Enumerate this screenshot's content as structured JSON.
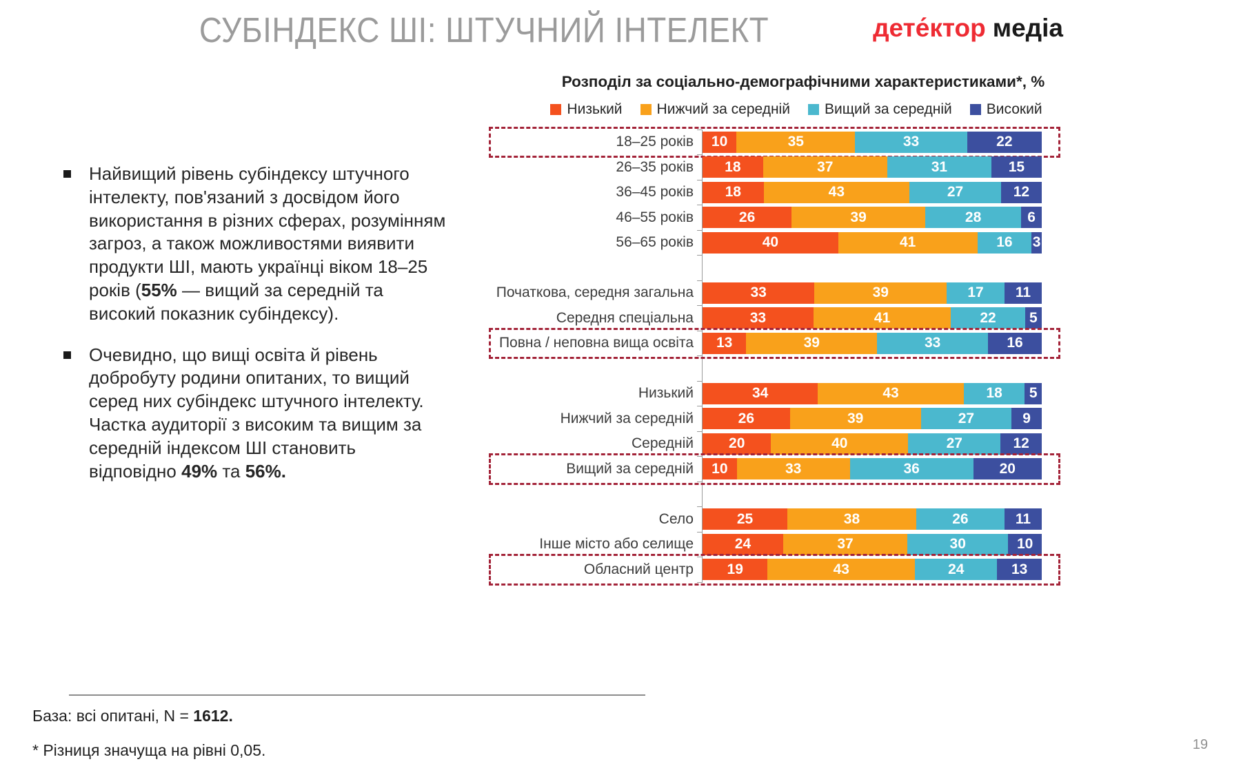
{
  "title": "СУБІНДЕКС ШІ: ШТУЧНИЙ ІНТЕЛЕКТ",
  "logo": {
    "brand_red": "дете́ктор",
    "brand_black": "медіа",
    "red_color": "#EE2B33"
  },
  "bullets": [
    {
      "segments": [
        {
          "t": "Найвищий рівень субіндексу штучного інтелекту, пов'язаний з досвідом його використання в різних сферах, розумінням загроз, а також можливостями виявити продукти ШІ, мають українці віком 18–25 років (",
          "b": false
        },
        {
          "t": "55%",
          "b": true
        },
        {
          "t": " — вищий за середній та високий показник субіндексу).",
          "b": false
        }
      ]
    },
    {
      "segments": [
        {
          "t": "Очевидно, що вищі освіта й рівень добробуту родини опитаних, то вищий серед них субіндекс штучного інтелекту. Частка аудиторії з високим та вищим за середній індексом ШІ становить відповідно ",
          "b": false
        },
        {
          "t": "49%",
          "b": true
        },
        {
          "t": " та ",
          "b": false
        },
        {
          "t": "56%.",
          "b": true
        }
      ]
    }
  ],
  "chart_data": {
    "type": "bar",
    "stacked": true,
    "orientation": "horizontal",
    "title": "Розподіл за соціально-демографічними характеристиками*, %",
    "value_unit": "%",
    "xlim": [
      0,
      100
    ],
    "legend_position": "top",
    "series_names": [
      "Низький",
      "Нижчий за середній",
      "Вищий за середній",
      "Високий"
    ],
    "series_colors": [
      "#F4511E",
      "#F9A11B",
      "#4BB8CE",
      "#3C4F9F"
    ],
    "highlight_box_color": "#A32338",
    "groups": [
      {
        "rows": [
          {
            "label": "18–25 років",
            "values": [
              10,
              35,
              33,
              22
            ],
            "highlighted": true
          },
          {
            "label": "26–35 років",
            "values": [
              18,
              37,
              31,
              15
            ],
            "highlighted": false
          },
          {
            "label": "36–45 років",
            "values": [
              18,
              43,
              27,
              12
            ],
            "highlighted": false
          },
          {
            "label": "46–55 років",
            "values": [
              26,
              39,
              28,
              6
            ],
            "highlighted": false
          },
          {
            "label": "56–65 років",
            "values": [
              40,
              41,
              16,
              3
            ],
            "highlighted": false
          }
        ]
      },
      {
        "rows": [
          {
            "label": "Початкова, середня загальна",
            "values": [
              33,
              39,
              17,
              11
            ],
            "highlighted": false
          },
          {
            "label": "Середня спеціальна",
            "values": [
              33,
              41,
              22,
              5
            ],
            "highlighted": false
          },
          {
            "label": "Повна / неповна вища освіта",
            "values": [
              13,
              39,
              33,
              16
            ],
            "highlighted": true
          }
        ]
      },
      {
        "rows": [
          {
            "label": "Низький",
            "values": [
              34,
              43,
              18,
              5
            ],
            "highlighted": false
          },
          {
            "label": "Нижчий за середній",
            "values": [
              26,
              39,
              27,
              9
            ],
            "highlighted": false
          },
          {
            "label": "Середній",
            "values": [
              20,
              40,
              27,
              12
            ],
            "highlighted": false
          },
          {
            "label": "Вищий за середній",
            "values": [
              10,
              33,
              36,
              20
            ],
            "highlighted": true
          }
        ]
      },
      {
        "rows": [
          {
            "label": "Село",
            "values": [
              25,
              38,
              26,
              11
            ],
            "highlighted": false
          },
          {
            "label": "Інше місто або селище",
            "values": [
              24,
              37,
              30,
              10
            ],
            "highlighted": false
          },
          {
            "label": "Обласний центр",
            "values": [
              19,
              43,
              24,
              13
            ],
            "highlighted": true
          }
        ]
      }
    ]
  },
  "footer": {
    "base_segments": [
      {
        "t": "База: всі опитані, N = ",
        "b": false
      },
      {
        "t": "1612.",
        "b": true
      }
    ],
    "note": "* Різниця значуща на рівні 0,05.",
    "page_number": "19"
  }
}
